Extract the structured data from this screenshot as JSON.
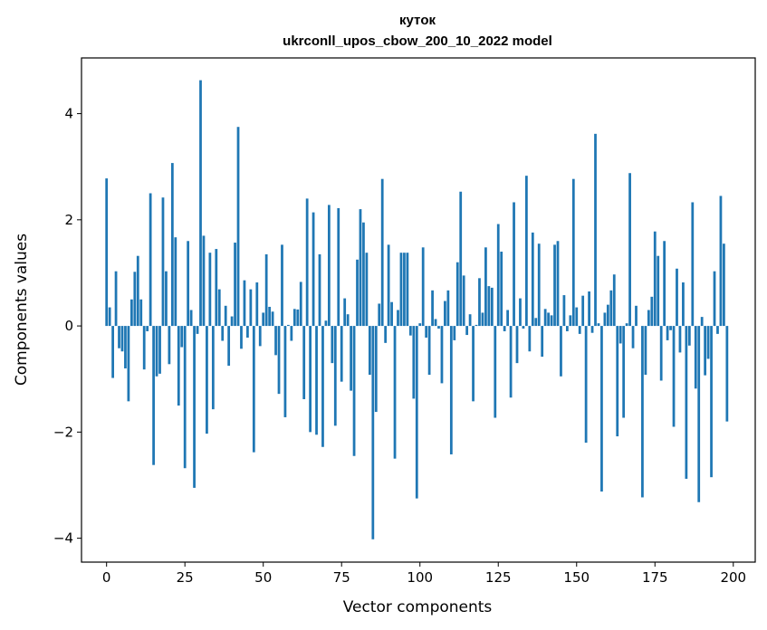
{
  "chart_data": {
    "type": "bar",
    "title": "кутoк",
    "subtitle": "ukrconll_upos_cbow_200_10_2022 model",
    "xlabel": "Vector components",
    "ylabel": "Components values",
    "xlim": [
      -8,
      207
    ],
    "ylim": [
      -4.45,
      5.05
    ],
    "xticks": [
      0,
      25,
      50,
      75,
      100,
      125,
      150,
      175,
      200
    ],
    "yticks": [
      -4,
      -2,
      0,
      2,
      4
    ],
    "ytick_labels": [
      "−4",
      "−2",
      "0",
      "2",
      "4"
    ],
    "grid": false,
    "legend": "none",
    "bar_color": "#1f77b4",
    "values": [
      2.78,
      0.35,
      -0.98,
      1.03,
      -0.42,
      -0.48,
      -0.8,
      -1.42,
      0.5,
      1.02,
      1.32,
      0.5,
      -0.82,
      -0.1,
      2.5,
      -2.62,
      -0.95,
      -0.9,
      2.42,
      1.03,
      -0.72,
      3.07,
      1.67,
      -1.5,
      -0.4,
      -2.68,
      1.6,
      0.3,
      -3.05,
      -0.15,
      4.63,
      1.7,
      -2.03,
      1.38,
      -1.57,
      1.45,
      0.69,
      -0.28,
      0.38,
      -0.75,
      0.18,
      1.57,
      3.75,
      -0.43,
      0.86,
      -0.22,
      0.69,
      -2.38,
      0.82,
      -0.38,
      0.25,
      1.35,
      0.36,
      0.27,
      -0.55,
      -1.28,
      1.53,
      -1.72,
      0.02,
      -0.28,
      0.32,
      0.31,
      0.83,
      -1.38,
      2.4,
      -2.0,
      2.14,
      -2.05,
      1.35,
      -2.28,
      0.1,
      2.28,
      -0.7,
      -1.88,
      2.22,
      -1.05,
      0.52,
      0.22,
      -1.22,
      -2.45,
      1.25,
      2.2,
      1.95,
      1.38,
      -0.92,
      -4.02,
      -1.62,
      0.42,
      2.77,
      -0.32,
      1.53,
      0.45,
      -2.5,
      0.3,
      1.38,
      1.38,
      1.38,
      -0.18,
      -1.37,
      -3.25,
      0.05,
      1.48,
      -0.22,
      -0.92,
      0.67,
      0.13,
      -0.05,
      -1.08,
      0.47,
      0.67,
      -2.42,
      -0.27,
      1.2,
      2.53,
      0.95,
      -0.17,
      0.22,
      -1.42,
      0.02,
      0.9,
      0.25,
      1.48,
      0.75,
      0.72,
      -1.73,
      1.92,
      1.4,
      -0.1,
      0.3,
      -1.35,
      2.33,
      -0.7,
      0.52,
      -0.05,
      2.83,
      -0.48,
      1.76,
      0.15,
      1.55,
      -0.58,
      0.32,
      0.25,
      0.2,
      1.53,
      1.6,
      -0.95,
      0.58,
      -0.1,
      0.2,
      2.77,
      0.35,
      -0.15,
      0.57,
      -2.2,
      0.65,
      -0.13,
      3.62,
      0.05,
      -3.12,
      0.25,
      0.4,
      0.67,
      0.97,
      -2.08,
      -0.33,
      -1.73,
      0.05,
      2.88,
      -0.42,
      0.38,
      0.0,
      -3.23,
      -0.92,
      0.3,
      0.55,
      1.78,
      1.32,
      -1.03,
      1.6,
      -0.27,
      -0.08,
      -1.9,
      1.08,
      -0.5,
      0.82,
      -2.88,
      -0.37,
      2.33,
      -1.18,
      -3.32,
      0.17,
      -0.93,
      -0.62,
      -2.85,
      1.03,
      -0.15,
      2.45,
      1.55,
      -1.8
    ]
  }
}
